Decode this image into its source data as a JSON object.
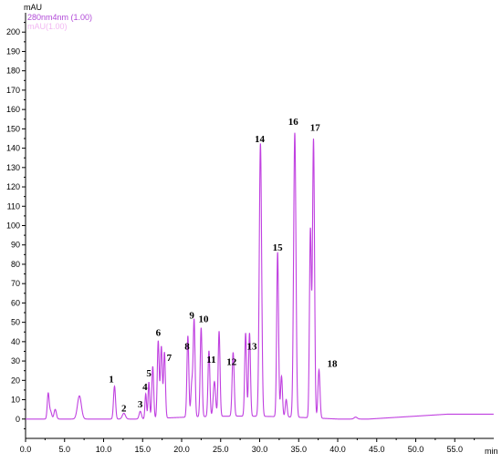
{
  "chart_data": {
    "type": "line",
    "ylabel": "mAU",
    "xlabel": "min",
    "xlim": [
      0,
      60
    ],
    "ylim": [
      -10,
      210
    ],
    "x_ticks": [
      "0.0",
      "5.0",
      "10.0",
      "15.0",
      "20.0",
      "25.0",
      "30.0",
      "35.0",
      "40.0",
      "45.0",
      "50.0",
      "55.0"
    ],
    "y_ticks": [
      "0",
      "10",
      "20",
      "30",
      "40",
      "50",
      "60",
      "70",
      "80",
      "90",
      "100",
      "110",
      "120",
      "130",
      "140",
      "150",
      "160",
      "170",
      "180",
      "190",
      "200"
    ],
    "x_tick_values": [
      0,
      5,
      10,
      15,
      20,
      25,
      30,
      35,
      40,
      45,
      50,
      55
    ],
    "y_tick_values": [
      0,
      10,
      20,
      30,
      40,
      50,
      60,
      70,
      80,
      90,
      100,
      110,
      120,
      130,
      140,
      150,
      160,
      170,
      180,
      190,
      200
    ],
    "legend": [
      {
        "label": "280nm4nm (1.00)",
        "color": "#b24bd8"
      },
      {
        "label": "mAU(1.00)",
        "color": "#f2b8f2"
      }
    ],
    "series": [
      {
        "name": "280nm4nm (1.00)",
        "color": "#c040e0",
        "peaks": [
          {
            "x": 2.9,
            "y": 13,
            "w": 0.12
          },
          {
            "x": 3.2,
            "y": 4,
            "w": 0.15
          },
          {
            "x": 3.8,
            "y": 5,
            "w": 0.15
          },
          {
            "x": 6.9,
            "y": 12,
            "w": 0.25
          },
          {
            "x": 11.4,
            "y": 17,
            "w": 0.13
          },
          {
            "x": 12.6,
            "y": 3,
            "w": 0.2
          },
          {
            "x": 14.7,
            "y": 4,
            "w": 0.15
          },
          {
            "x": 15.4,
            "y": 13,
            "w": 0.1
          },
          {
            "x": 15.8,
            "y": 19,
            "w": 0.1
          },
          {
            "x": 16.3,
            "y": 27,
            "w": 0.12
          },
          {
            "x": 17.0,
            "y": 40,
            "w": 0.12
          },
          {
            "x": 17.4,
            "y": 37,
            "w": 0.12
          },
          {
            "x": 17.8,
            "y": 34,
            "w": 0.12
          },
          {
            "x": 20.8,
            "y": 42,
            "w": 0.12
          },
          {
            "x": 21.3,
            "y": 17,
            "w": 0.12
          },
          {
            "x": 21.6,
            "y": 50,
            "w": 0.12
          },
          {
            "x": 22.5,
            "y": 46,
            "w": 0.12
          },
          {
            "x": 23.5,
            "y": 34,
            "w": 0.12
          },
          {
            "x": 24.2,
            "y": 18,
            "w": 0.15
          },
          {
            "x": 24.8,
            "y": 44,
            "w": 0.12
          },
          {
            "x": 26.6,
            "y": 33,
            "w": 0.13
          },
          {
            "x": 28.2,
            "y": 43,
            "w": 0.12
          },
          {
            "x": 28.7,
            "y": 43,
            "w": 0.12
          },
          {
            "x": 30.1,
            "y": 141,
            "w": 0.15
          },
          {
            "x": 32.3,
            "y": 85,
            "w": 0.12
          },
          {
            "x": 32.8,
            "y": 21,
            "w": 0.12
          },
          {
            "x": 33.4,
            "y": 9,
            "w": 0.12
          },
          {
            "x": 34.5,
            "y": 147,
            "w": 0.15
          },
          {
            "x": 36.5,
            "y": 97,
            "w": 0.12
          },
          {
            "x": 36.9,
            "y": 144,
            "w": 0.13
          },
          {
            "x": 37.6,
            "y": 25,
            "w": 0.13
          },
          {
            "x": 42.3,
            "y": 1,
            "w": 0.2
          }
        ]
      }
    ],
    "annotations": [
      {
        "text": "1",
        "x": 11.0,
        "y": 19
      },
      {
        "text": "2",
        "x": 12.6,
        "y": 4
      },
      {
        "text": "3",
        "x": 14.7,
        "y": 6
      },
      {
        "text": "4",
        "x": 15.3,
        "y": 15
      },
      {
        "text": "5",
        "x": 15.8,
        "y": 22
      },
      {
        "text": "6",
        "x": 17.0,
        "y": 43
      },
      {
        "text": "7",
        "x": 18.4,
        "y": 30
      },
      {
        "text": "8",
        "x": 20.7,
        "y": 36
      },
      {
        "text": "9",
        "x": 21.3,
        "y": 52
      },
      {
        "text": "10",
        "x": 22.8,
        "y": 50
      },
      {
        "text": "11",
        "x": 23.8,
        "y": 29
      },
      {
        "text": "12",
        "x": 26.4,
        "y": 28
      },
      {
        "text": "13",
        "x": 29.0,
        "y": 36
      },
      {
        "text": "14",
        "x": 30.0,
        "y": 143
      },
      {
        "text": "15",
        "x": 32.3,
        "y": 87
      },
      {
        "text": "16",
        "x": 34.3,
        "y": 152
      },
      {
        "text": "17",
        "x": 37.1,
        "y": 149
      },
      {
        "text": "18",
        "x": 39.3,
        "y": 27
      }
    ]
  }
}
